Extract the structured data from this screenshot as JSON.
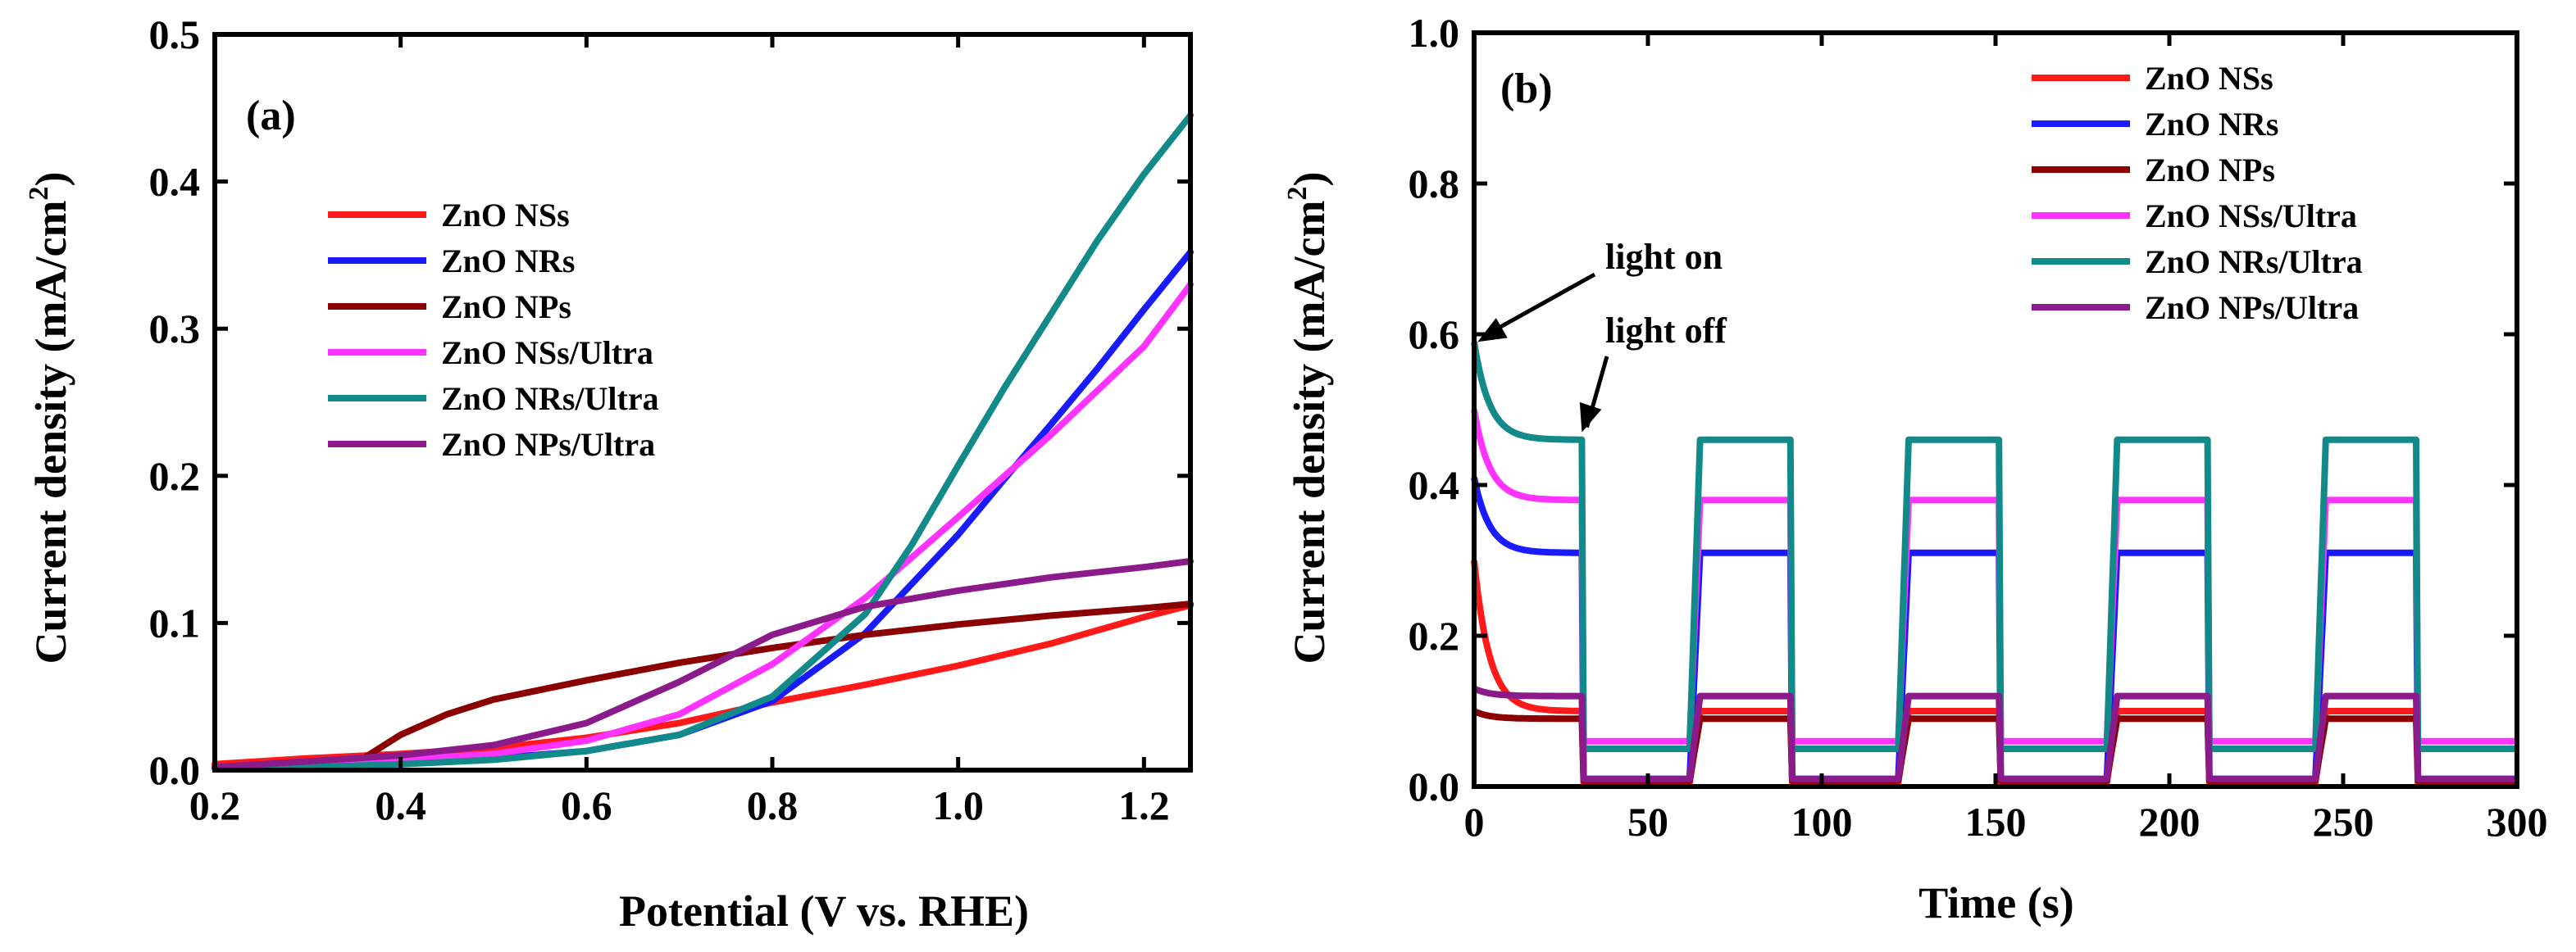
{
  "chart_data": [
    {
      "type": "line",
      "panel_label": "(a)",
      "xlabel": "Potential (V vs. RHE)",
      "ylabel": "Current density (mA/cm",
      "ylabel_sup": "2",
      "ylabel_close": ")",
      "xlim": [
        0.2,
        1.25
      ],
      "ylim": [
        0.0,
        0.5
      ],
      "xticks": [
        0.2,
        0.4,
        0.6,
        0.8,
        1.0,
        1.2
      ],
      "xtick_labels": [
        "0.2",
        "0.4",
        "0.6",
        "0.8",
        "1.0",
        "1.2"
      ],
      "yticks": [
        0.0,
        0.1,
        0.2,
        0.3,
        0.4,
        0.5
      ],
      "ytick_labels": [
        "0.0",
        "0.1",
        "0.2",
        "0.3",
        "0.4",
        "0.5"
      ],
      "legend_position": "center-left",
      "series": [
        {
          "name": "ZnO NSs",
          "color": "#ff1a1a",
          "x": [
            0.2,
            0.3,
            0.4,
            0.5,
            0.6,
            0.7,
            0.8,
            0.9,
            1.0,
            1.1,
            1.2,
            1.25
          ],
          "y": [
            0.004,
            0.008,
            0.011,
            0.015,
            0.022,
            0.032,
            0.046,
            0.058,
            0.071,
            0.086,
            0.104,
            0.112
          ]
        },
        {
          "name": "ZnO NRs",
          "color": "#1a1aff",
          "x": [
            0.2,
            0.3,
            0.4,
            0.5,
            0.6,
            0.7,
            0.8,
            0.9,
            1.0,
            1.05,
            1.1,
            1.15,
            1.2,
            1.25
          ],
          "y": [
            0.002,
            0.003,
            0.005,
            0.008,
            0.013,
            0.024,
            0.047,
            0.093,
            0.16,
            0.198,
            0.235,
            0.273,
            0.313,
            0.352
          ]
        },
        {
          "name": "ZnO NPs",
          "color": "#8b0000",
          "x": [
            0.2,
            0.3,
            0.36,
            0.4,
            0.45,
            0.5,
            0.6,
            0.7,
            0.8,
            0.9,
            1.0,
            1.1,
            1.2,
            1.25
          ],
          "y": [
            0.002,
            0.004,
            0.008,
            0.024,
            0.038,
            0.048,
            0.061,
            0.073,
            0.083,
            0.092,
            0.099,
            0.105,
            0.11,
            0.113
          ]
        },
        {
          "name": "ZnO NSs/Ultra",
          "color": "#ff33ff",
          "x": [
            0.2,
            0.3,
            0.4,
            0.5,
            0.6,
            0.7,
            0.8,
            0.9,
            1.0,
            1.1,
            1.2,
            1.25
          ],
          "y": [
            0.002,
            0.004,
            0.007,
            0.011,
            0.02,
            0.038,
            0.072,
            0.117,
            0.172,
            0.228,
            0.288,
            0.33
          ]
        },
        {
          "name": "ZnO NRs/Ultra",
          "color": "#138a8a",
          "x": [
            0.2,
            0.3,
            0.4,
            0.5,
            0.6,
            0.7,
            0.8,
            0.9,
            0.95,
            1.0,
            1.05,
            1.1,
            1.15,
            1.2,
            1.25
          ],
          "y": [
            0.001,
            0.002,
            0.004,
            0.007,
            0.013,
            0.024,
            0.05,
            0.106,
            0.153,
            0.207,
            0.26,
            0.31,
            0.36,
            0.405,
            0.445
          ]
        },
        {
          "name": "ZnO NPs/Ultra",
          "color": "#8b1a8b",
          "x": [
            0.2,
            0.3,
            0.4,
            0.5,
            0.6,
            0.7,
            0.8,
            0.9,
            1.0,
            1.1,
            1.2,
            1.25
          ],
          "y": [
            0.002,
            0.006,
            0.01,
            0.017,
            0.032,
            0.06,
            0.092,
            0.111,
            0.122,
            0.131,
            0.138,
            0.142
          ]
        }
      ]
    },
    {
      "type": "line",
      "panel_label": "(b)",
      "xlabel": "Time (s)",
      "ylabel": "Current density (mA/cm",
      "ylabel_sup": "2",
      "ylabel_close": ")",
      "xlim": [
        0,
        300
      ],
      "ylim": [
        0.0,
        1.0
      ],
      "xticks": [
        0,
        50,
        100,
        150,
        200,
        250,
        300
      ],
      "xtick_labels": [
        "0",
        "50",
        "100",
        "150",
        "200",
        "250",
        "300"
      ],
      "yticks": [
        0.0,
        0.2,
        0.4,
        0.6,
        0.8,
        1.0
      ],
      "ytick_labels": [
        "0.0",
        "0.2",
        "0.4",
        "0.6",
        "0.8",
        "1.0"
      ],
      "legend_position": "top-right",
      "light_on_intervals": [
        [
          0,
          31
        ],
        [
          62,
          91
        ],
        [
          122,
          151
        ],
        [
          182,
          211
        ],
        [
          242,
          271
        ]
      ],
      "annotations": [
        {
          "text": "light on",
          "x": 1,
          "y": 0.59
        },
        {
          "text": "light off",
          "x": 31,
          "y": 0.47
        }
      ],
      "series": [
        {
          "name": "ZnO NSs",
          "color": "#ff1a1a",
          "dark": 0.005,
          "on_level": 0.1,
          "initial_spike": 0.3
        },
        {
          "name": "ZnO NRs",
          "color": "#1a1aff",
          "dark": 0.01,
          "on_level": 0.31,
          "initial_spike": 0.41
        },
        {
          "name": "ZnO NPs",
          "color": "#8b0000",
          "dark": 0.008,
          "on_level": 0.09,
          "initial_spike": 0.1
        },
        {
          "name": "ZnO NSs/Ultra",
          "color": "#ff33ff",
          "dark": 0.06,
          "on_level": 0.38,
          "initial_spike": 0.5
        },
        {
          "name": "ZnO NRs/Ultra",
          "color": "#138a8a",
          "dark": 0.05,
          "on_level": 0.46,
          "initial_spike": 0.59
        },
        {
          "name": "ZnO NPs/Ultra",
          "color": "#8b1a8b",
          "dark": 0.01,
          "on_level": 0.12,
          "initial_spike": 0.13
        }
      ]
    }
  ]
}
